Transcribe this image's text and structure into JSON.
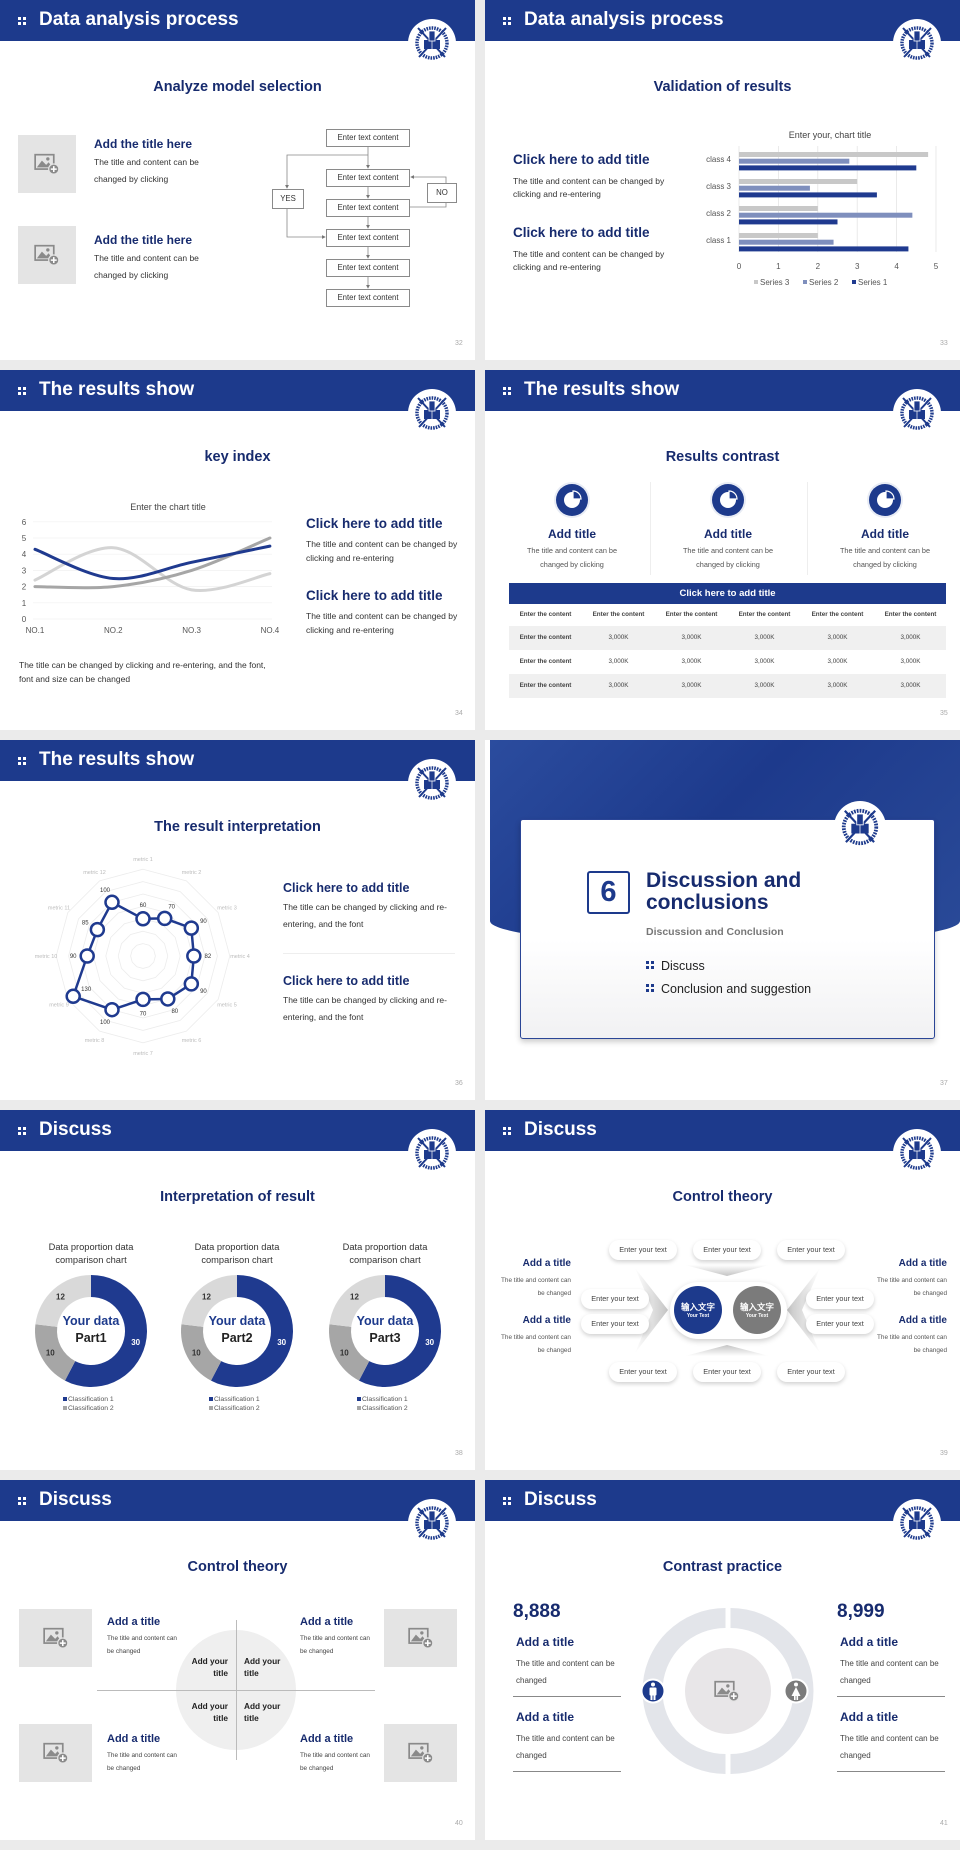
{
  "colors": {
    "brand_navy": "#1d3a8c",
    "title_navy": "#172b6e",
    "gray_dark": "#8c8c8c",
    "gray_light": "#d9d9d9",
    "background": "#ebebeb"
  },
  "icons": {
    "header_bullet": "grid-dots-icon",
    "logo": "university-seal-logo",
    "placeholder": "image-add-icon",
    "result_icon": "pie-chart-icon",
    "people": [
      "male-icon",
      "female-icon"
    ]
  },
  "slides": [
    {
      "header": "Data analysis process",
      "title": "Analyze model selection",
      "page": "32",
      "items": [
        {
          "title": "Add the title here",
          "body": "The title and content can be changed by clicking"
        },
        {
          "title": "Add the title here",
          "body": "The title and content can be changed by clicking"
        }
      ],
      "flow": {
        "steps": [
          "Enter text content",
          "Enter text content",
          "Enter text content",
          "Enter text content",
          "Enter text content",
          "Enter text content"
        ],
        "yes": "YES",
        "no": "NO"
      }
    },
    {
      "header": "Data analysis process",
      "title": "Validation of results",
      "page": "33",
      "items": [
        {
          "title": "Click here to add title",
          "body": "The title and content can be changed by clicking and re-entering"
        },
        {
          "title": "Click here to add title",
          "body": "The title and content can be changed by clicking and re-entering"
        }
      ]
    },
    {
      "header": "The results show",
      "title": "key index",
      "page": "34",
      "items": [
        {
          "title": "Click here to add title",
          "body": "The title and content can be changed by clicking and re-entering"
        },
        {
          "title": "Click here to add title",
          "body": "The title and content can be changed by clicking and re-entering"
        }
      ],
      "note": "The title can be changed by clicking and re-entering, and the font, font and size can be changed"
    },
    {
      "header": "The results show",
      "title": "Results contrast",
      "page": "35",
      "cols": [
        {
          "title": "Add title",
          "body": "The title and content can be changed by clicking"
        },
        {
          "title": "Add title",
          "body": "The title and content can be changed by clicking"
        },
        {
          "title": "Add title",
          "body": "The title and content can be changed by clicking"
        }
      ],
      "table": {
        "title": "Click here to add title",
        "header": [
          "Enter the content",
          "Enter the content",
          "Enter the content",
          "Enter the content",
          "Enter the content",
          "Enter the content"
        ],
        "rows": [
          [
            "Enter the content",
            "3,000K",
            "3,000K",
            "3,000K",
            "3,000K",
            "3,000K"
          ],
          [
            "Enter the content",
            "3,000K",
            "3,000K",
            "3,000K",
            "3,000K",
            "3,000K"
          ],
          [
            "Enter the content",
            "3,000K",
            "3,000K",
            "3,000K",
            "3,000K",
            "3,000K"
          ]
        ]
      }
    },
    {
      "header": "The results show",
      "title": "The result interpretation",
      "page": "36",
      "items": [
        {
          "title": "Click here to add  title",
          "body": "The title can be changed by clicking and re-entering, and the font"
        },
        {
          "title": "Click here to add  title",
          "body": "The title can be changed by clicking and re-entering, and the font"
        }
      ]
    },
    {
      "number": "6",
      "title": "Discussion and conclusions",
      "subtitle": "Discussion and Conclusion",
      "bullets": [
        "Discuss",
        "Conclusion and suggestion"
      ],
      "page": "37"
    },
    {
      "header": "Discuss",
      "title": "Interpretation of result",
      "page": "38"
    },
    {
      "header": "Discuss",
      "title": "Control theory",
      "page": "39",
      "center": [
        {
          "zh": "输入文字",
          "en": "Your Text"
        },
        {
          "zh": "输入文字",
          "en": "Your Text"
        }
      ],
      "pills": [
        "Enter your text",
        "Enter your text",
        "Enter your text",
        "Enter your text",
        "Enter your text",
        "Enter your text",
        "Enter your text",
        "Enter your text",
        "Enter your text",
        "Enter your text"
      ],
      "side": [
        {
          "title": "Add a title",
          "body": "The title and content can be changed"
        },
        {
          "title": "Add a title",
          "body": "The title and content can be changed"
        },
        {
          "title": "Add a title",
          "body": "The title and content can be changed"
        },
        {
          "title": "Add a title",
          "body": "The title and content can be changed"
        }
      ]
    },
    {
      "header": "Discuss",
      "title": "Control theory",
      "page": "40",
      "items": [
        {
          "title": "Add a title",
          "body": "The title and content can be changed"
        },
        {
          "title": "Add a title",
          "body": "The title and content can be changed"
        },
        {
          "title": "Add a title",
          "body": "The title and content can be changed"
        },
        {
          "title": "Add a title",
          "body": "The title and content can be changed"
        }
      ],
      "quadrants": [
        "Add your title",
        "Add your title",
        "Add your title",
        "Add your title"
      ]
    },
    {
      "header": "Discuss",
      "title": "Contrast practice",
      "page": "41",
      "left": {
        "number": "8,888",
        "items": [
          {
            "title": "Add a title",
            "body": "The title and content can be changed"
          },
          {
            "title": "Add a title",
            "body": "The title and content can be changed"
          }
        ]
      },
      "right": {
        "number": "8,999",
        "items": [
          {
            "title": "Add a title",
            "body": "The title and content can be changed"
          },
          {
            "title": "Add a title",
            "body": "The title and content can be changed"
          }
        ]
      }
    }
  ],
  "chart_data": [
    {
      "type": "bar",
      "orientation": "horizontal",
      "title": "Enter your, chart title",
      "categories": [
        "class 1",
        "class 2",
        "class 3",
        "class 4"
      ],
      "series": [
        {
          "name": "Series 1",
          "values": [
            4.3,
            2.5,
            3.5,
            4.5
          ],
          "color": "#1f3a8f"
        },
        {
          "name": "Series 2",
          "values": [
            2.4,
            4.4,
            1.8,
            2.8
          ],
          "color": "#7f8fbd"
        },
        {
          "name": "Series 3",
          "values": [
            2,
            2,
            3,
            4.8
          ],
          "color": "#c8c8c8"
        }
      ],
      "xlim": [
        0,
        5
      ],
      "xticks": [
        "0",
        "1",
        "2",
        "3",
        "4",
        "5"
      ],
      "grid": true,
      "legend": "bottom"
    },
    {
      "type": "line",
      "smooth": true,
      "title": "Enter the chart title",
      "categories": [
        "NO.1",
        "NO.2",
        "NO.3",
        "NO.4"
      ],
      "series": [
        {
          "values": [
            4.3,
            2.5,
            3.5,
            4.5
          ],
          "color": "#1f3a8f"
        },
        {
          "values": [
            2.4,
            4.4,
            1.8,
            2.8
          ],
          "color": "#d4d4d4"
        },
        {
          "values": [
            2,
            2,
            3,
            5
          ],
          "color": "#a6a6a6"
        }
      ],
      "ylim": [
        0,
        6
      ],
      "yticks": [
        "0",
        "1",
        "2",
        "3",
        "4",
        "5",
        "6"
      ],
      "grid": true,
      "legend": "none"
    },
    {
      "type": "radar",
      "categories": [
        "metric 1",
        "metric 2",
        "metric 3",
        "metric 4",
        "metric 5",
        "metric 6",
        "metric 7",
        "metric 8",
        "metric 9",
        "metric 10",
        "metric 11",
        "metric 12"
      ],
      "values": [
        60,
        70,
        90,
        82,
        90,
        80,
        70,
        100,
        130,
        90,
        85,
        100
      ],
      "value_labels": [
        "60",
        "70",
        "90",
        "82",
        "90",
        "80",
        "70",
        "100",
        "130",
        "90",
        "85",
        "100"
      ],
      "color": "#1f3a8f"
    },
    {
      "type": "pie",
      "donut": true,
      "title": "Data proportion data comparison chart",
      "center_label": [
        "Your data",
        "Part1"
      ],
      "values": [
        30,
        10,
        12
      ],
      "value_labels": [
        "30",
        "10",
        "12"
      ],
      "colors": [
        "#1f3a8f",
        "#a6a6a6",
        "#d9d9d9"
      ],
      "legend": [
        "Classification 1",
        "Classification 2"
      ]
    },
    {
      "type": "pie",
      "donut": true,
      "title": "Data proportion data comparison chart",
      "center_label": [
        "Your data",
        "Part2"
      ],
      "values": [
        30,
        10,
        12
      ],
      "value_labels": [
        "30",
        "10",
        "12"
      ],
      "colors": [
        "#1f3a8f",
        "#a6a6a6",
        "#d9d9d9"
      ],
      "legend": [
        "Classification 1",
        "Classification 2"
      ]
    },
    {
      "type": "pie",
      "donut": true,
      "title": "Data proportion data comparison chart",
      "center_label": [
        "Your data",
        "Part3"
      ],
      "values": [
        30,
        10,
        12
      ],
      "value_labels": [
        "30",
        "10",
        "12"
      ],
      "colors": [
        "#1f3a8f",
        "#a6a6a6",
        "#d9d9d9"
      ],
      "legend": [
        "Classification 1",
        "Classification 2"
      ]
    }
  ]
}
